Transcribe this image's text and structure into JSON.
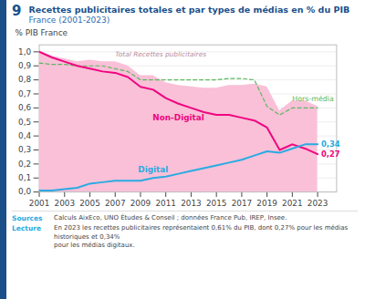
{
  "chart_data": {
    "type": "line",
    "figure_number": "9",
    "title": "Recettes publicitaires totales et par types de médias en % du PIB",
    "subtitle": "France (2001-2023)",
    "x": [
      2001,
      2002,
      2003,
      2004,
      2005,
      2006,
      2007,
      2008,
      2009,
      2010,
      2011,
      2012,
      2013,
      2014,
      2015,
      2016,
      2017,
      2018,
      2019,
      2020,
      2021,
      2022,
      2023
    ],
    "xlim": [
      2001,
      2024.5
    ],
    "xticks": [
      2001,
      2003,
      2005,
      2007,
      2009,
      2011,
      2013,
      2015,
      2017,
      2019,
      2021,
      2023
    ],
    "ylabel": "% PIB France",
    "ylim": [
      0.0,
      1.05
    ],
    "yticks": [
      {
        "value": 0.0,
        "label": "0,0"
      },
      {
        "value": 0.1,
        "label": "0,1"
      },
      {
        "value": 0.2,
        "label": "0,2"
      },
      {
        "value": 0.3,
        "label": "0,3"
      },
      {
        "value": 0.4,
        "label": "0,4"
      },
      {
        "value": 0.5,
        "label": "0,5"
      },
      {
        "value": 0.6,
        "label": "0,6"
      },
      {
        "value": 0.7,
        "label": "0,7"
      },
      {
        "value": 0.8,
        "label": "0,8"
      },
      {
        "value": 0.9,
        "label": "0,9"
      },
      {
        "value": 1.0,
        "label": "1,0"
      }
    ],
    "grid": true,
    "series": [
      {
        "name": "Total Recettes publicitaires",
        "type": "area",
        "color": "#F9C0D8",
        "values": [
          1.01,
          0.97,
          0.95,
          0.93,
          0.94,
          0.93,
          0.93,
          0.9,
          0.83,
          0.83,
          0.78,
          0.76,
          0.75,
          0.74,
          0.74,
          0.76,
          0.76,
          0.77,
          0.75,
          0.58,
          0.65,
          0.65,
          0.61
        ]
      },
      {
        "name": "Hors-média",
        "type": "line",
        "line_style": "dashed",
        "color": "#5BB85D",
        "values": [
          0.92,
          0.91,
          0.91,
          0.9,
          0.9,
          0.9,
          0.88,
          0.86,
          0.8,
          0.8,
          0.8,
          0.8,
          0.8,
          0.8,
          0.8,
          0.81,
          0.81,
          0.8,
          0.61,
          0.55,
          0.6,
          0.6,
          0.6
        ]
      },
      {
        "name": "Non-Digital",
        "type": "line",
        "line_style": "solid",
        "color": "#F0047F",
        "values": [
          1.0,
          0.96,
          0.93,
          0.9,
          0.88,
          0.86,
          0.85,
          0.82,
          0.75,
          0.73,
          0.67,
          0.63,
          0.6,
          0.57,
          0.55,
          0.55,
          0.53,
          0.51,
          0.46,
          0.3,
          0.34,
          0.31,
          0.27
        ]
      },
      {
        "name": "Digital",
        "type": "line",
        "line_style": "solid",
        "color": "#29ABE2",
        "values": [
          0.01,
          0.01,
          0.02,
          0.03,
          0.06,
          0.07,
          0.08,
          0.08,
          0.08,
          0.1,
          0.11,
          0.13,
          0.15,
          0.17,
          0.19,
          0.21,
          0.23,
          0.26,
          0.29,
          0.28,
          0.31,
          0.34,
          0.34
        ]
      }
    ],
    "annotations": [
      {
        "text": "0,34",
        "x": 2023,
        "y": 0.34,
        "color": "#29ABE2"
      },
      {
        "text": "0,27",
        "x": 2023,
        "y": 0.27,
        "color": "#F0047F"
      }
    ],
    "notes": [
      {
        "label": "Sources",
        "text": "Calculs AixEco, UNO Études & Conseil ; données France Pub, IREP, Insee."
      },
      {
        "label": "Lecture",
        "text": "En 2023 les recettes publicitaires représentaient 0,61% du PIB, dont 0,27% pour les médias historiques et 0,34%\npour les médias digitaux."
      }
    ]
  }
}
